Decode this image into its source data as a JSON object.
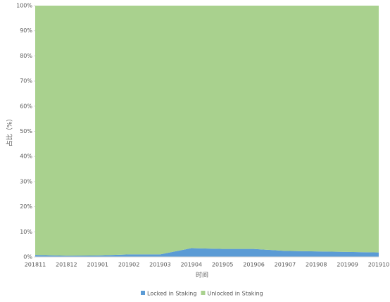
{
  "chart_data": {
    "type": "area",
    "stacked": true,
    "x_label": "时间",
    "y_label": "占比（%）",
    "categories": [
      "201811",
      "201812",
      "201901",
      "201902",
      "201903",
      "201904",
      "201905",
      "201906",
      "201907",
      "201908",
      "201909",
      "201910"
    ],
    "series": [
      {
        "name": "Locked in Staking",
        "color": "#5b9bd5",
        "values": [
          0.8,
          0.5,
          0.6,
          1.0,
          1.0,
          3.5,
          3.2,
          3.2,
          2.4,
          2.2,
          2.0,
          1.8
        ]
      },
      {
        "name": "Unlocked in Staking",
        "color": "#a9d18e",
        "values": [
          99.2,
          99.5,
          99.4,
          99.0,
          99.0,
          96.5,
          96.8,
          96.8,
          97.6,
          97.8,
          98.0,
          98.2
        ]
      }
    ],
    "ylim": [
      0,
      100
    ],
    "yticks": [
      {
        "value": 0,
        "label": "0%"
      },
      {
        "value": 10,
        "label": "10%"
      },
      {
        "value": 20,
        "label": "20%"
      },
      {
        "value": 30,
        "label": "30%"
      },
      {
        "value": 40,
        "label": "40%"
      },
      {
        "value": 50,
        "label": "50%"
      },
      {
        "value": 60,
        "label": "60%"
      },
      {
        "value": 70,
        "label": "70%"
      },
      {
        "value": 80,
        "label": "80%"
      },
      {
        "value": 90,
        "label": "90%"
      },
      {
        "value": 100,
        "label": "100%"
      }
    ],
    "legend": "bottom"
  }
}
